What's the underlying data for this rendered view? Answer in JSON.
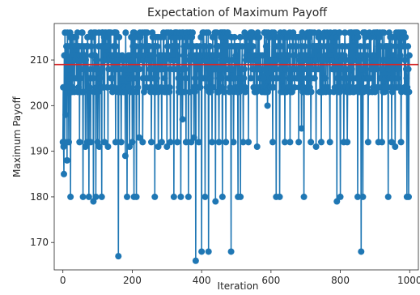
{
  "chart_data": {
    "type": "line",
    "title": "Expectation of Maximum Payoff",
    "xlabel": "Iteration",
    "ylabel": "Maximum Payoff",
    "xlim": [
      -25,
      1025
    ],
    "ylim": [
      164,
      218
    ],
    "xticks": [
      0,
      200,
      400,
      600,
      800,
      1000
    ],
    "yticks": [
      170,
      180,
      190,
      200,
      210
    ],
    "xtick_labels": [
      "0",
      "200",
      "400",
      "600",
      "800",
      "1000"
    ],
    "ytick_labels": [
      "170",
      "180",
      "190",
      "200",
      "210"
    ],
    "grid": false,
    "legend": "none",
    "reference_line": {
      "y": 209,
      "color": "#d62728"
    },
    "series": [
      {
        "color": "#1f77b4",
        "marker": "circle",
        "levels": [
          216,
          215,
          213,
          211,
          210,
          208,
          206,
          204,
          203
        ],
        "dips": [
          {
            "x": 0,
            "y": 192
          },
          {
            "x": 1,
            "y": 204
          },
          {
            "x": 2,
            "y": 191
          },
          {
            "x": 3,
            "y": 185
          },
          {
            "x": 5,
            "y": 192
          },
          {
            "x": 8,
            "y": 198
          },
          {
            "x": 12,
            "y": 188
          },
          {
            "x": 17,
            "y": 192
          },
          {
            "x": 22,
            "y": 180
          },
          {
            "x": 28,
            "y": 204
          },
          {
            "x": 48,
            "y": 192
          },
          {
            "x": 52,
            "y": 203
          },
          {
            "x": 58,
            "y": 180
          },
          {
            "x": 65,
            "y": 191
          },
          {
            "x": 70,
            "y": 192
          },
          {
            "x": 75,
            "y": 180
          },
          {
            "x": 80,
            "y": 192
          },
          {
            "x": 88,
            "y": 179
          },
          {
            "x": 95,
            "y": 180
          },
          {
            "x": 100,
            "y": 192
          },
          {
            "x": 105,
            "y": 191
          },
          {
            "x": 112,
            "y": 180
          },
          {
            "x": 120,
            "y": 192
          },
          {
            "x": 130,
            "y": 191
          },
          {
            "x": 140,
            "y": 204
          },
          {
            "x": 152,
            "y": 192
          },
          {
            "x": 160,
            "y": 167
          },
          {
            "x": 168,
            "y": 192
          },
          {
            "x": 175,
            "y": 203
          },
          {
            "x": 180,
            "y": 189
          },
          {
            "x": 185,
            "y": 180
          },
          {
            "x": 192,
            "y": 191
          },
          {
            "x": 200,
            "y": 192
          },
          {
            "x": 205,
            "y": 180
          },
          {
            "x": 212,
            "y": 180
          },
          {
            "x": 220,
            "y": 193
          },
          {
            "x": 230,
            "y": 192
          },
          {
            "x": 240,
            "y": 204
          },
          {
            "x": 255,
            "y": 192
          },
          {
            "x": 265,
            "y": 180
          },
          {
            "x": 275,
            "y": 191
          },
          {
            "x": 285,
            "y": 192
          },
          {
            "x": 300,
            "y": 191
          },
          {
            "x": 310,
            "y": 192
          },
          {
            "x": 320,
            "y": 180
          },
          {
            "x": 330,
            "y": 192
          },
          {
            "x": 340,
            "y": 180
          },
          {
            "x": 345,
            "y": 197
          },
          {
            "x": 355,
            "y": 192
          },
          {
            "x": 362,
            "y": 180
          },
          {
            "x": 370,
            "y": 192
          },
          {
            "x": 378,
            "y": 193
          },
          {
            "x": 383,
            "y": 166
          },
          {
            "x": 392,
            "y": 192
          },
          {
            "x": 400,
            "y": 168
          },
          {
            "x": 410,
            "y": 180
          },
          {
            "x": 420,
            "y": 168
          },
          {
            "x": 430,
            "y": 192
          },
          {
            "x": 440,
            "y": 179
          },
          {
            "x": 450,
            "y": 192
          },
          {
            "x": 460,
            "y": 180
          },
          {
            "x": 470,
            "y": 192
          },
          {
            "x": 485,
            "y": 168
          },
          {
            "x": 492,
            "y": 192
          },
          {
            "x": 505,
            "y": 180
          },
          {
            "x": 512,
            "y": 180
          },
          {
            "x": 520,
            "y": 192
          },
          {
            "x": 535,
            "y": 192
          },
          {
            "x": 550,
            "y": 204
          },
          {
            "x": 560,
            "y": 191
          },
          {
            "x": 575,
            "y": 204
          },
          {
            "x": 590,
            "y": 200
          },
          {
            "x": 605,
            "y": 192
          },
          {
            "x": 615,
            "y": 180
          },
          {
            "x": 625,
            "y": 180
          },
          {
            "x": 640,
            "y": 192
          },
          {
            "x": 655,
            "y": 192
          },
          {
            "x": 668,
            "y": 204
          },
          {
            "x": 680,
            "y": 192
          },
          {
            "x": 688,
            "y": 195
          },
          {
            "x": 695,
            "y": 180
          },
          {
            "x": 705,
            "y": 204
          },
          {
            "x": 715,
            "y": 192
          },
          {
            "x": 730,
            "y": 191
          },
          {
            "x": 745,
            "y": 192
          },
          {
            "x": 755,
            "y": 204
          },
          {
            "x": 770,
            "y": 192
          },
          {
            "x": 790,
            "y": 179
          },
          {
            "x": 800,
            "y": 180
          },
          {
            "x": 810,
            "y": 192
          },
          {
            "x": 820,
            "y": 192
          },
          {
            "x": 835,
            "y": 204
          },
          {
            "x": 850,
            "y": 180
          },
          {
            "x": 860,
            "y": 168
          },
          {
            "x": 865,
            "y": 180
          },
          {
            "x": 880,
            "y": 192
          },
          {
            "x": 895,
            "y": 204
          },
          {
            "x": 910,
            "y": 192
          },
          {
            "x": 920,
            "y": 192
          },
          {
            "x": 930,
            "y": 204
          },
          {
            "x": 938,
            "y": 180
          },
          {
            "x": 948,
            "y": 192
          },
          {
            "x": 958,
            "y": 191
          },
          {
            "x": 968,
            "y": 204
          },
          {
            "x": 975,
            "y": 192
          },
          {
            "x": 985,
            "y": 204
          },
          {
            "x": 992,
            "y": 180
          },
          {
            "x": 997,
            "y": 180
          },
          {
            "x": 999,
            "y": 211
          }
        ]
      }
    ]
  }
}
